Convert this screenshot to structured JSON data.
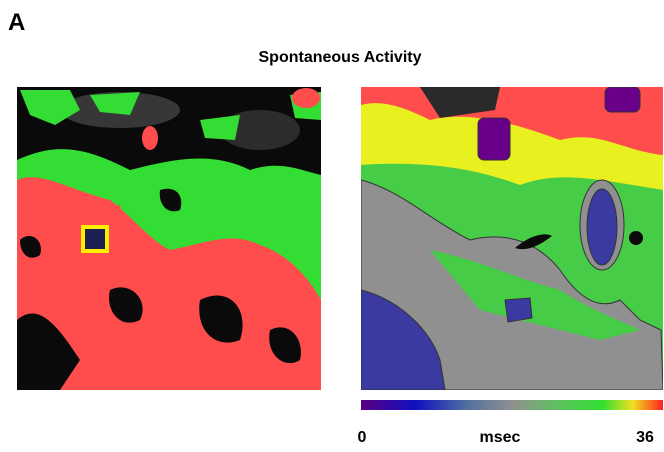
{
  "panel_label": "A",
  "title": "Spontaneous Activity",
  "colorbar": {
    "min": 0,
    "unit": "msec",
    "max": 36
  }
}
